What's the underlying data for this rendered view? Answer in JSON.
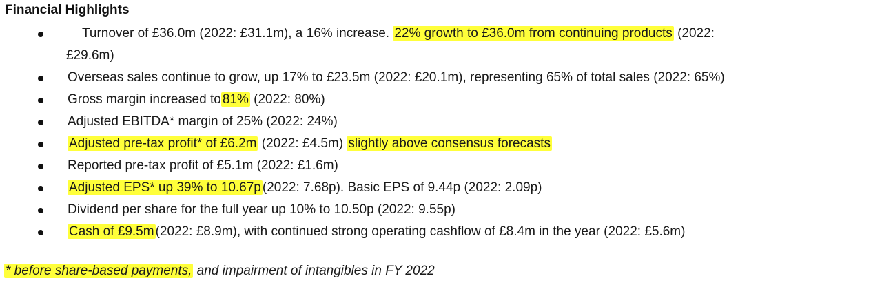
{
  "title": "Financial Highlights",
  "highlight_color": "#ffff3a",
  "bullets": [
    {
      "a": "Turnover of £36.0m (2022: £31.1m), a 16% increase.",
      "hl": "22% growth to £36.0m from continuing products",
      "b": "(2022:",
      "cont": "£29.6m)"
    },
    {
      "text": "Overseas sales continue to grow, up 17% to £23.5m (2022: £20.1m), representing 65% of total sales (2022: 65%)"
    },
    {
      "a": "Gross margin increased to",
      "hl": "81%",
      "b": "(2022: 80%)"
    },
    {
      "text": "Adjusted EBITDA* margin of 25% (2022: 24%)"
    },
    {
      "hl": "Adjusted pre-tax profit* of £6.2m",
      "a": "(2022: £4.5m)",
      "hl2": "slightly above consensus forecasts"
    },
    {
      "text": "Reported pre-tax profit of £5.1m (2022: £1.6m)"
    },
    {
      "hl": "Adjusted EPS* up 39% to 10.67p",
      "a": "(2022: 7.68p). Basic EPS of 9.44p (2022: 2.09p)"
    },
    {
      "text": "Dividend per share for the full year up 10% to 10.50p (2022: 9.55p)"
    },
    {
      "hl": "Cash of £9.5m",
      "a": "(2022: £8.9m), with continued strong operating cashflow of £8.4m in the year (2022: £5.6m)"
    }
  ],
  "footnote": {
    "hl": "* before share-based payments,",
    "rest": "and impairment of intangibles in FY 2022"
  }
}
